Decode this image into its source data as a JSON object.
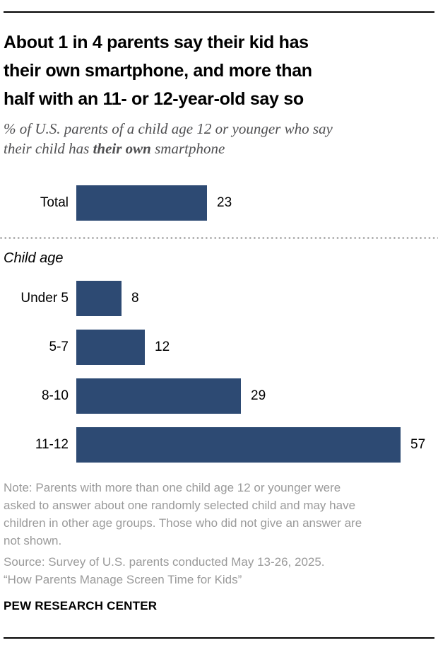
{
  "header": {
    "title": "About 1 in 4 parents say their kid has\ntheir own smartphone, and more than\nhalf with an 11- or 12-year-old say so",
    "subtitle": {
      "line1": "% of U.S. parents of a child age 12 or younger who say",
      "line2_pre": "their child has ",
      "line2_bold": "their own",
      "line2_post": " smartphone"
    }
  },
  "chart_data": {
    "type": "bar",
    "orientation": "horizontal",
    "title": "About 1 in 4 parents say their kid has their own smartphone, and more than half with an 11- or 12-year-old say so",
    "subtitle": "% of U.S. parents of a child age 12 or younger who say their child has their own smartphone",
    "categories": [
      "Total",
      "Under 5",
      "5-7",
      "8-10",
      "11-12"
    ],
    "values": [
      23,
      8,
      12,
      29,
      57
    ],
    "group_label": "Child age",
    "group_members": [
      "Under 5",
      "5-7",
      "8-10",
      "11-12"
    ],
    "value_labels_shown": true,
    "xlim": [
      0,
      60
    ],
    "grid": false,
    "legend": "none",
    "bar_color": "#2d4a73"
  },
  "footer": {
    "note": "Note: Parents with more than one child age 12 or younger were\nasked to answer about one randomly selected child and may have\nchildren in other age groups. Those who did not give an answer are\nnot shown.",
    "source": "Source: Survey of U.S. parents conducted May 13-26, 2025.",
    "quote": "“How Parents Manage Screen Time for Kids”",
    "brand": "PEW RESEARCH CENTER"
  }
}
